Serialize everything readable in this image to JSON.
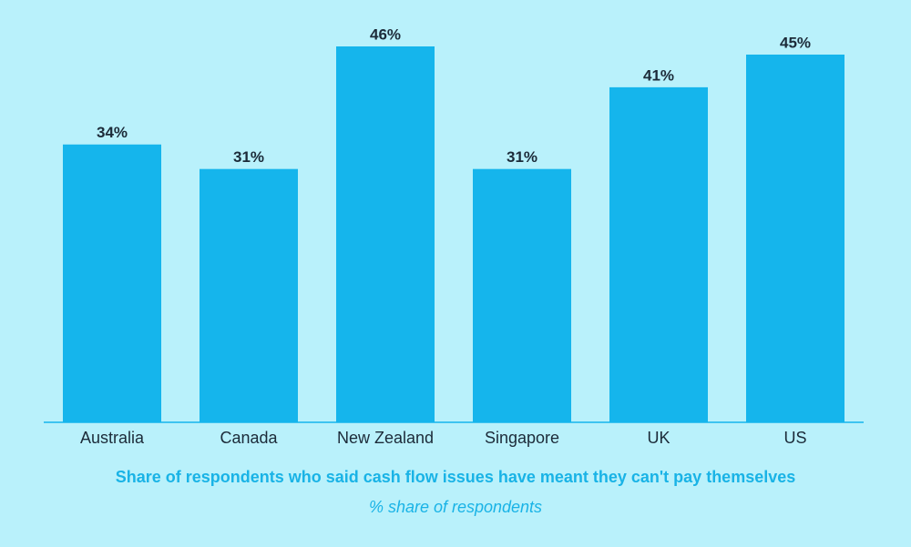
{
  "chart_data": {
    "type": "bar",
    "title": "Share of respondents who said cash flow issues have meant they can't pay themselves",
    "subtitle": "% share of respondents",
    "categories": [
      "Australia",
      "Canada",
      "New Zealand",
      "Singapore",
      "UK",
      "US"
    ],
    "values": [
      34,
      31,
      46,
      31,
      41,
      45
    ],
    "value_labels": [
      "34%",
      "31%",
      "46%",
      "31%",
      "41%",
      "45%"
    ],
    "color": "#15b5ec"
  }
}
